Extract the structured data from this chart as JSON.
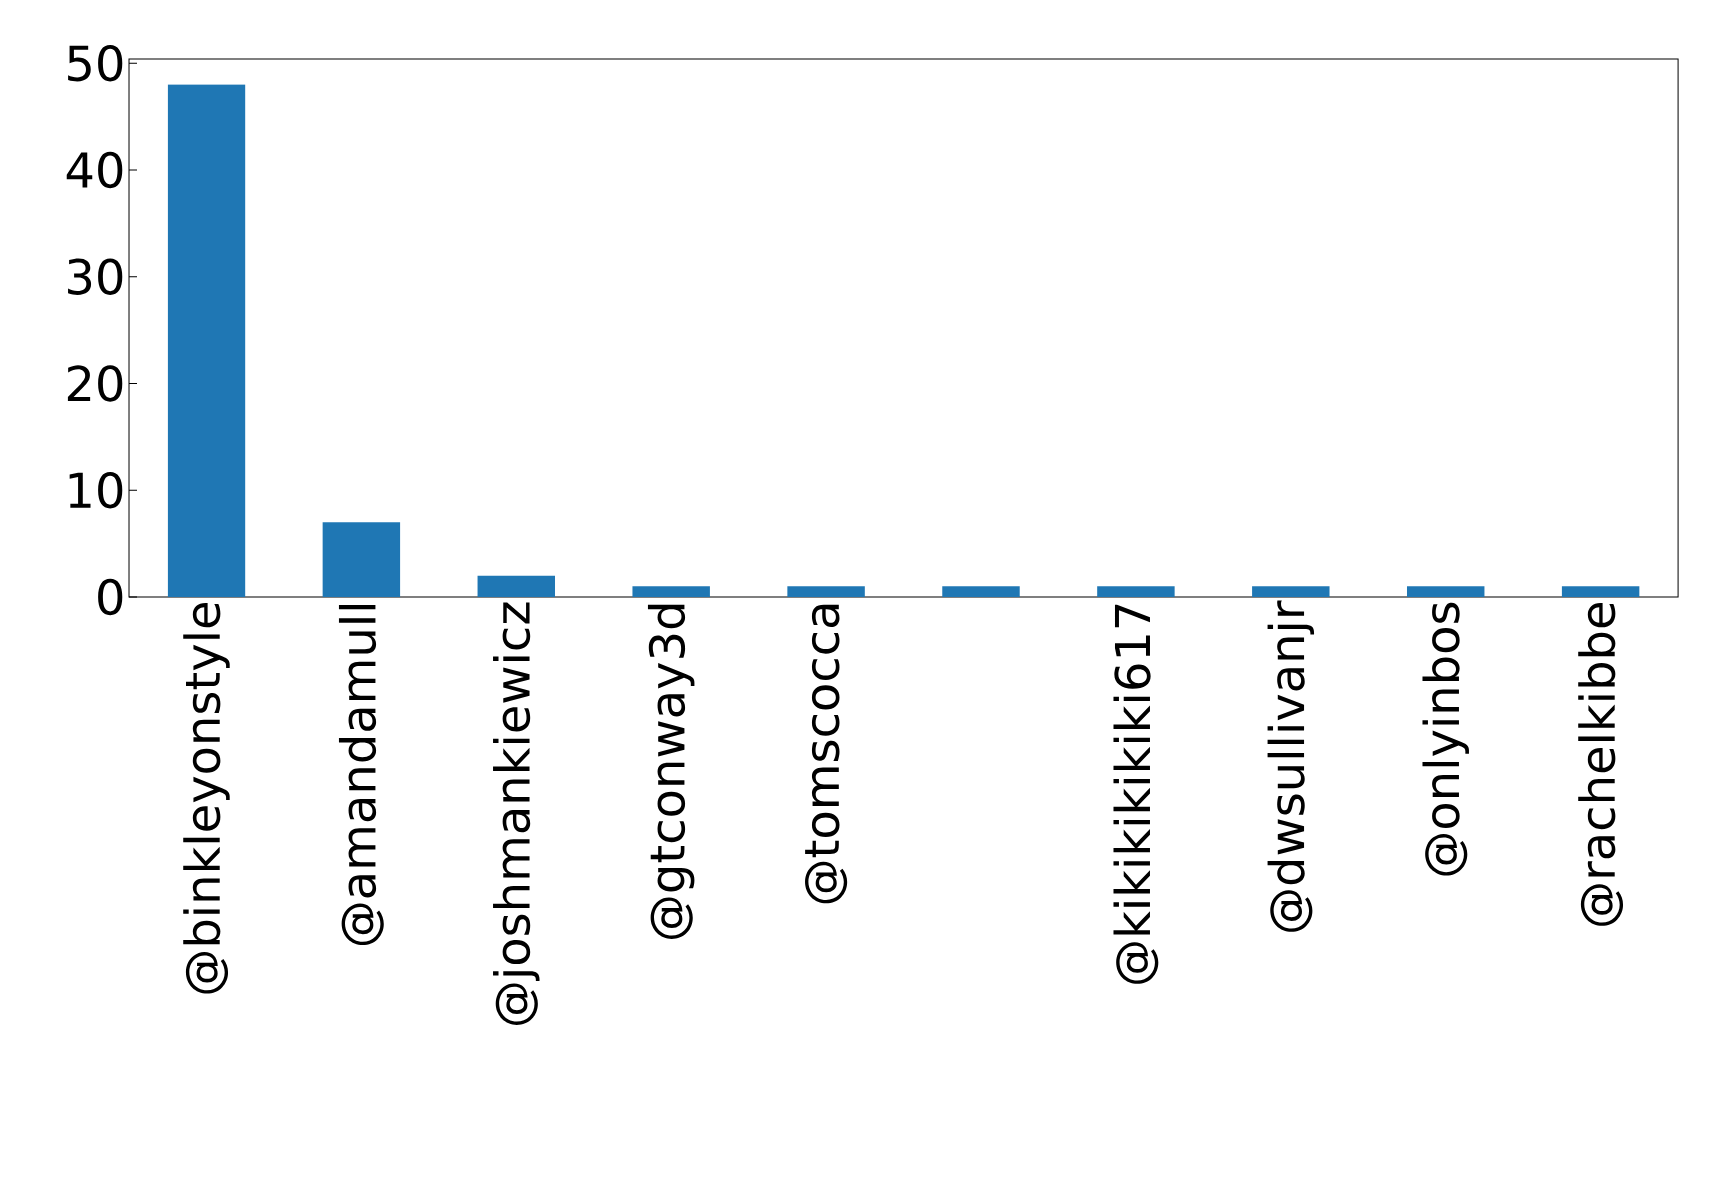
{
  "chart_data": {
    "type": "bar",
    "categories": [
      "@binkleyonstyle",
      "@amandamull",
      "@joshmankiewicz",
      "@gtconway3d",
      "@tomscocca",
      null,
      "@kikikikikiki617",
      "@dwsullivanjr",
      "@onlyinbos",
      "@rachelkibbe"
    ],
    "values": [
      48,
      7,
      2,
      1,
      1,
      1,
      1,
      1,
      1,
      1
    ],
    "color": "#1f77b4",
    "ylim": [
      0,
      50.4
    ],
    "yticks": [
      0,
      10,
      20,
      30,
      40,
      50
    ]
  }
}
